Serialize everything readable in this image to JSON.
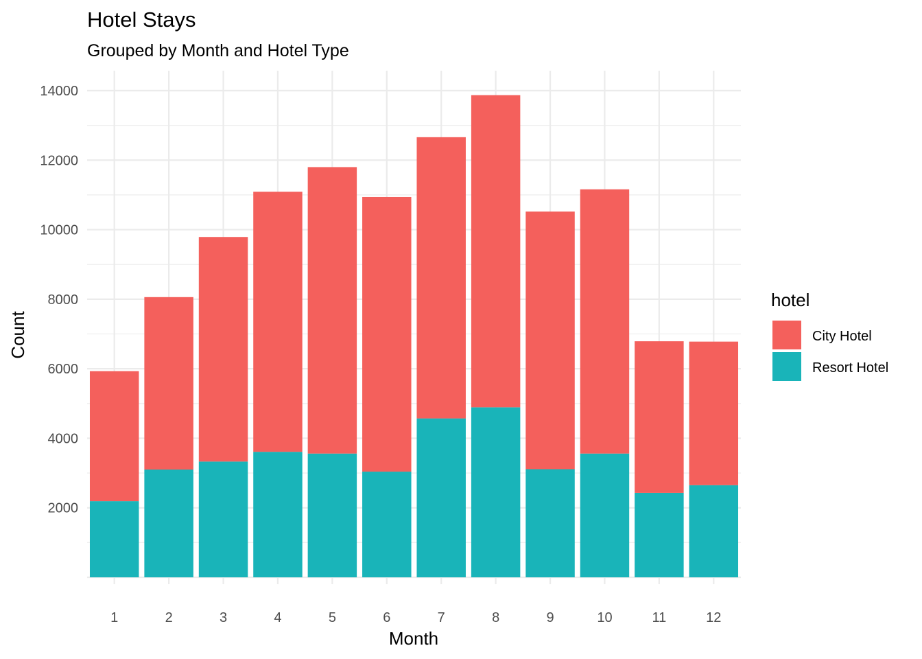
{
  "chart_data": {
    "type": "bar",
    "stacked": true,
    "title": "Hotel Stays",
    "subtitle": "Grouped by Month and Hotel Type",
    "xlabel": "Month",
    "ylabel": "Count",
    "categories": [
      "1",
      "2",
      "3",
      "4",
      "5",
      "6",
      "7",
      "8",
      "9",
      "10",
      "11",
      "12"
    ],
    "series": [
      {
        "name": "Resort Hotel",
        "color": "#19b4b9",
        "values": [
          2190,
          3100,
          3330,
          3610,
          3560,
          3040,
          4570,
          4890,
          3110,
          3560,
          2430,
          2650
        ]
      },
      {
        "name": "City Hotel",
        "color": "#f4605c",
        "values": [
          3740,
          4960,
          6460,
          7480,
          8240,
          7900,
          8090,
          8980,
          7410,
          7600,
          4360,
          4130
        ]
      }
    ],
    "ylim": [
      0,
      14500
    ],
    "yticks": [
      2000,
      4000,
      6000,
      8000,
      10000,
      12000,
      14000
    ],
    "grid": true,
    "legend": {
      "title": "hotel",
      "position": "right",
      "items": [
        {
          "label": "City Hotel",
          "color": "#f4605c"
        },
        {
          "label": "Resort Hotel",
          "color": "#19b4b9"
        }
      ]
    }
  }
}
